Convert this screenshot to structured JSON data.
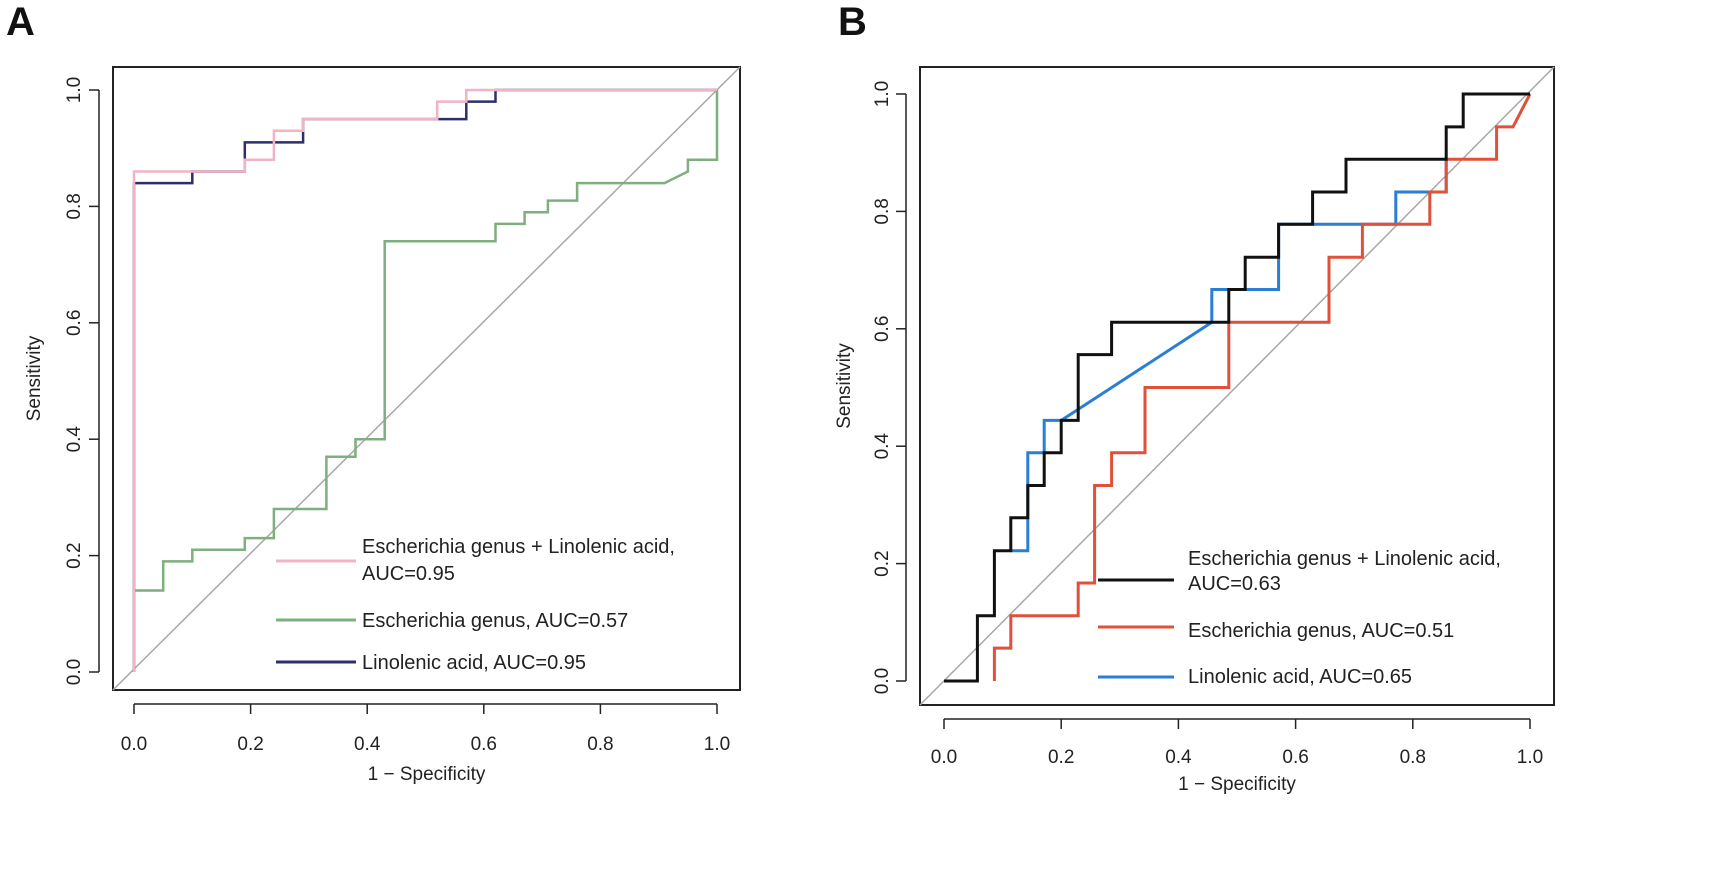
{
  "chart_data": [
    {
      "panel": "A",
      "type": "line",
      "title": "",
      "xlabel": "1 − Specificity",
      "ylabel": "Sensitivity",
      "xlim": [
        0,
        1
      ],
      "ylim": [
        0,
        1
      ],
      "xticks": [
        "0.0",
        "0.2",
        "0.4",
        "0.6",
        "0.8",
        "1.0"
      ],
      "yticks": [
        "0.0",
        "0.2",
        "0.4",
        "0.6",
        "0.8",
        "1.0"
      ],
      "diagonal": true,
      "legend_position": "bottom-right",
      "series": [
        {
          "name": "Escherichia genus + Linolenic acid, AUC=0.95",
          "legend_lines": [
            "Escherichia genus + Linolenic acid,",
            "AUC=0.95"
          ],
          "color": "#f0b4c4",
          "x": [
            0,
            0,
            0.1,
            0.19,
            0.19,
            0.24,
            0.24,
            0.29,
            0.29,
            0.52,
            0.52,
            0.57,
            0.57,
            1.0
          ],
          "y": [
            0,
            0.86,
            0.86,
            0.86,
            0.88,
            0.88,
            0.93,
            0.93,
            0.95,
            0.95,
            0.98,
            0.98,
            1.0,
            1.0
          ]
        },
        {
          "name": "Escherichia genus, AUC=0.57",
          "legend_lines": [
            "Escherichia genus, AUC=0.57"
          ],
          "color": "#7fae7f",
          "x": [
            0,
            0.05,
            0.05,
            0.1,
            0.1,
            0.19,
            0.19,
            0.24,
            0.24,
            0.33,
            0.33,
            0.38,
            0.38,
            0.43,
            0.43,
            0.62,
            0.62,
            0.67,
            0.67,
            0.71,
            0.71,
            0.76,
            0.76,
            0.78,
            0.78,
            0.91,
            0.95,
            0.95,
            1.0,
            1.0
          ],
          "y": [
            0.14,
            0.14,
            0.19,
            0.19,
            0.21,
            0.21,
            0.23,
            0.23,
            0.28,
            0.28,
            0.37,
            0.37,
            0.4,
            0.4,
            0.74,
            0.74,
            0.77,
            0.77,
            0.79,
            0.79,
            0.81,
            0.81,
            0.84,
            0.84,
            0.84,
            0.84,
            0.86,
            0.88,
            0.88,
            1.0
          ]
        },
        {
          "name": "Linolenic acid, AUC=0.95",
          "legend_lines": [
            "Linolenic acid, AUC=0.95"
          ],
          "color": "#2e2e6e",
          "x": [
            0,
            0,
            0.1,
            0.1,
            0.19,
            0.19,
            0.29,
            0.29,
            0.57,
            0.57,
            0.62,
            0.62,
            1.0
          ],
          "y": [
            0,
            0.84,
            0.84,
            0.86,
            0.86,
            0.91,
            0.91,
            0.95,
            0.95,
            0.98,
            0.98,
            1.0,
            1.0
          ]
        }
      ]
    },
    {
      "panel": "B",
      "type": "line",
      "title": "",
      "xlabel": "1 − Specificity",
      "ylabel": "Sensitivity",
      "xlim": [
        0,
        1
      ],
      "ylim": [
        0,
        1
      ],
      "xticks": [
        "0.0",
        "0.2",
        "0.4",
        "0.6",
        "0.8",
        "1.0"
      ],
      "yticks": [
        "0.0",
        "0.2",
        "0.4",
        "0.6",
        "0.8",
        "1.0"
      ],
      "diagonal": true,
      "legend_position": "bottom-right",
      "series": [
        {
          "name": "Escherichia genus + Linolenic acid, AUC=0.63",
          "legend_lines": [
            "Escherichia genus + Linolenic acid,",
            "AUC=0.63"
          ],
          "color": "#111111",
          "x": [
            0,
            0.057,
            0.057,
            0.086,
            0.086,
            0.114,
            0.114,
            0.143,
            0.143,
            0.171,
            0.171,
            0.2,
            0.2,
            0.229,
            0.229,
            0.286,
            0.286,
            0.486,
            0.486,
            0.514,
            0.514,
            0.571,
            0.571,
            0.629,
            0.629,
            0.686,
            0.686,
            0.857,
            0.857,
            0.886,
            0.886,
            1.0
          ],
          "y": [
            0,
            0,
            0.111,
            0.111,
            0.222,
            0.222,
            0.278,
            0.278,
            0.333,
            0.333,
            0.389,
            0.389,
            0.444,
            0.444,
            0.556,
            0.556,
            0.611,
            0.611,
            0.667,
            0.667,
            0.722,
            0.722,
            0.778,
            0.778,
            0.833,
            0.833,
            0.889,
            0.889,
            0.944,
            0.944,
            1.0,
            1.0
          ]
        },
        {
          "name": "Escherichia genus, AUC=0.51",
          "legend_lines": [
            "Escherichia genus, AUC=0.51"
          ],
          "color": "#e0503a",
          "x": [
            0.086,
            0.086,
            0.114,
            0.114,
            0.229,
            0.229,
            0.257,
            0.257,
            0.286,
            0.286,
            0.343,
            0.343,
            0.486,
            0.486,
            0.657,
            0.657,
            0.714,
            0.714,
            0.829,
            0.829,
            0.857,
            0.857,
            0.943,
            0.943,
            0.971,
            1.0
          ],
          "y": [
            0,
            0.056,
            0.056,
            0.111,
            0.111,
            0.167,
            0.167,
            0.333,
            0.333,
            0.389,
            0.389,
            0.5,
            0.5,
            0.611,
            0.611,
            0.722,
            0.722,
            0.778,
            0.778,
            0.833,
            0.833,
            0.889,
            0.889,
            0.944,
            0.944,
            1.0
          ]
        },
        {
          "name": "Linolenic acid, AUC=0.65",
          "legend_lines": [
            " Linolenic acid, AUC=0.65"
          ],
          "color": "#2a7fd4",
          "x": [
            0.114,
            0.114,
            0.143,
            0.143,
            0.171,
            0.171,
            0.2,
            0.2,
            0.457,
            0.457,
            0.486,
            0.486,
            0.571,
            0.571,
            0.657,
            0.657,
            0.771,
            0.771,
            0.829,
            0.829,
            0.857,
            0.857
          ],
          "y": [
            0.222,
            0.222,
            0.222,
            0.389,
            0.389,
            0.444,
            0.444,
            0.444,
            0.611,
            0.667,
            0.667,
            0.667,
            0.667,
            0.778,
            0.778,
            0.778,
            0.778,
            0.833,
            0.833,
            0.833,
            0.833,
            0.889
          ]
        }
      ]
    }
  ]
}
